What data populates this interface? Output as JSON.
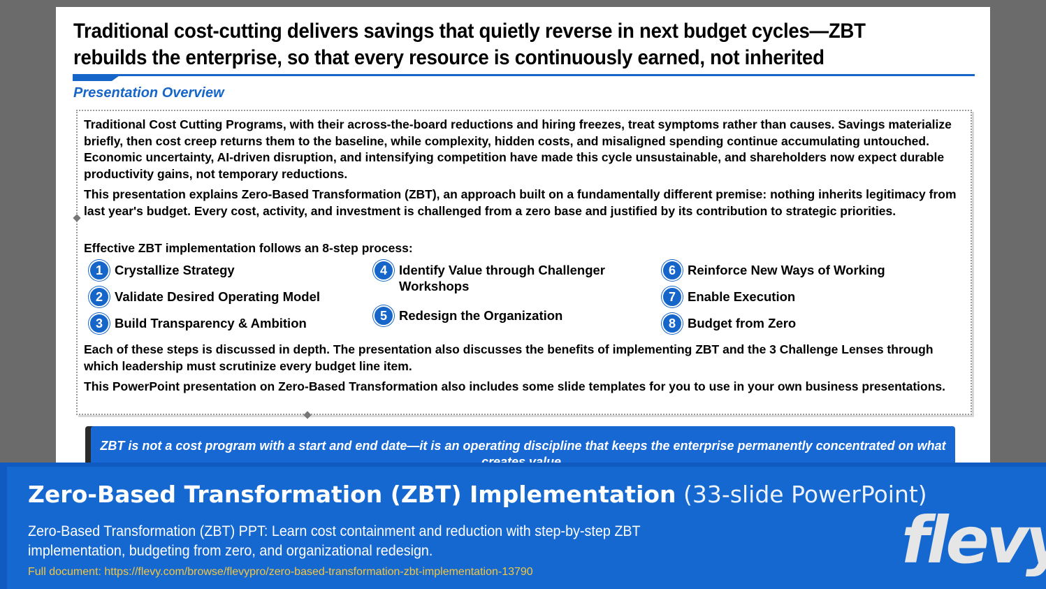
{
  "slide": {
    "title": "Traditional cost-cutting delivers savings that quietly reverse in next budget cycles—ZBT rebuilds the enterprise, so that every resource is continuously earned, not inherited",
    "section_label": "Presentation Overview",
    "paragraphs": {
      "p1": "Traditional Cost Cutting Programs, with their across-the-board reductions and hiring freezes, treat symptoms rather than causes. Savings materialize briefly, then cost creep returns them to the baseline, while complexity, hidden costs, and misaligned spending continue accumulating untouched. Economic uncertainty, AI-driven disruption, and intensifying competition have made this cycle unsustainable, and shareholders now expect durable productivity gains, not temporary reductions.",
      "p2": "This presentation explains Zero-Based Transformation (ZBT), an approach built on a fundamentally different premise: nothing inherits legitimacy from last year's budget. Every cost, activity, and investment is challenged from a zero base and justified by its contribution to strategic priorities.",
      "p3": "Effective ZBT implementation follows an 8-step process:",
      "p4": "Each of these steps is discussed in depth.  The presentation also discusses the benefits of implementing ZBT and the 3 Challenge Lenses through which leadership must scrutinize every budget line item.",
      "p5": "This PowerPoint presentation on Zero-Based Transformation also includes some slide templates for you to use in your own business presentations."
    },
    "steps": [
      {
        "num": "1",
        "label": "Crystallize Strategy"
      },
      {
        "num": "2",
        "label": "Validate Desired Operating Model"
      },
      {
        "num": "3",
        "label": "Build Transparency & Ambition"
      },
      {
        "num": "4",
        "label": "Identify Value through Challenger Workshops"
      },
      {
        "num": "5",
        "label": "Redesign the Organization"
      },
      {
        "num": "6",
        "label": "Reinforce New Ways of Working"
      },
      {
        "num": "7",
        "label": "Enable Execution"
      },
      {
        "num": "8",
        "label": "Budget from Zero"
      }
    ],
    "callout": "ZBT is not a cost program with a start and end date—it is an operating discipline that keeps the enterprise permanently concentrated on what creates value."
  },
  "banner": {
    "title_strong": "Zero-Based Transformation (ZBT) Implementation",
    "title_light": "(33-slide PowerPoint)",
    "description": "Zero-Based Transformation (ZBT) PPT: Learn cost containment and reduction with step-by-step ZBT implementation, budgeting from zero, and organizational redesign.",
    "link": "Full document: https://flevy.com/browse/flevypro/zero-based-transformation-zbt-implementation-13790",
    "logo": "flevy"
  },
  "colors": {
    "accent_blue": "#1665c8",
    "banner_blue": "#1468d0",
    "link_yellow": "#f2c744"
  }
}
